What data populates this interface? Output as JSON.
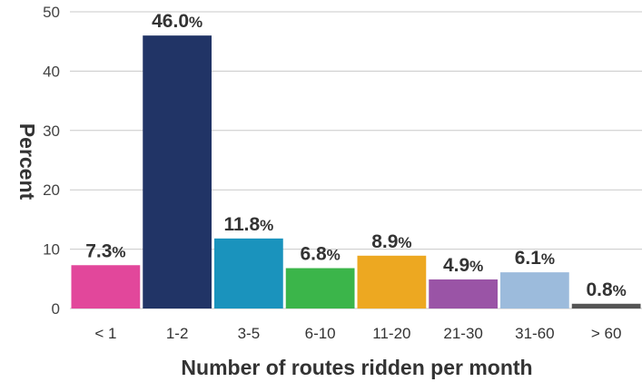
{
  "chart_data": {
    "type": "bar",
    "xlabel": "Number of routes ridden per month",
    "ylabel": "Percent",
    "ylim": [
      0,
      50
    ],
    "yticks": [
      0,
      10,
      20,
      30,
      40,
      50
    ],
    "grid": true,
    "categories": [
      "< 1",
      "1-2",
      "3-5",
      "6-10",
      "11-20",
      "21-30",
      "31-60",
      "> 60"
    ],
    "values": [
      7.3,
      46.0,
      11.8,
      6.8,
      8.9,
      4.9,
      6.1,
      0.8
    ],
    "value_labels": [
      "7.3",
      "46.0",
      "11.8",
      "6.8",
      "8.9",
      "4.9",
      "6.1",
      "0.8"
    ],
    "value_suffix": "%",
    "colors": [
      "#e2479b",
      "#213466",
      "#1a93bd",
      "#3bb54a",
      "#eda821",
      "#9a54a6",
      "#9cbbdc",
      "#555555"
    ]
  }
}
